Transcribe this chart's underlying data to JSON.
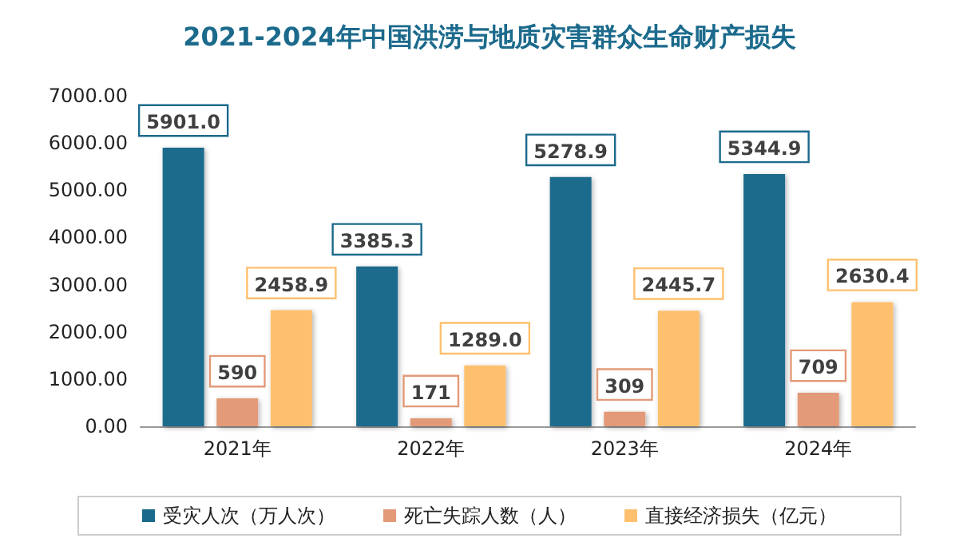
{
  "chart_data": {
    "type": "bar",
    "title": "2021-2024年中国洪涝与地质灾害群众生命财产损失",
    "categories": [
      "2021年",
      "2022年",
      "2023年",
      "2024年"
    ],
    "series": [
      {
        "name": "受灾人次（万人次）",
        "color": "#1b6a8c",
        "values": [
          5901.0,
          3385.3,
          5278.9,
          5344.9
        ],
        "value_labels": [
          "5901.0",
          "3385.3",
          "5278.9",
          "5344.9"
        ]
      },
      {
        "name": "死亡失踪人数（人）",
        "color": "#e39a78",
        "values": [
          590,
          171,
          309,
          709
        ],
        "value_labels": [
          "590",
          "171",
          "309",
          "709"
        ]
      },
      {
        "name": "直接经济损失（亿元）",
        "color": "#fec06e",
        "values": [
          2458.9,
          1289.0,
          2445.7,
          2630.4
        ],
        "value_labels": [
          "2458.9",
          "1289.0",
          "2445.7",
          "2630.4"
        ]
      }
    ],
    "ylim": [
      0,
      7000
    ],
    "yticks": [
      {
        "value": 0,
        "label": "0.00"
      },
      {
        "value": 1000,
        "label": "1000.00"
      },
      {
        "value": 2000,
        "label": "2000.00"
      },
      {
        "value": 3000,
        "label": "3000.00"
      },
      {
        "value": 4000,
        "label": "4000.00"
      },
      {
        "value": 5000,
        "label": "5000.00"
      },
      {
        "value": 6000,
        "label": "6000.00"
      },
      {
        "value": 7000,
        "label": "7000.00"
      }
    ],
    "grid": false,
    "legend": "bottom"
  }
}
